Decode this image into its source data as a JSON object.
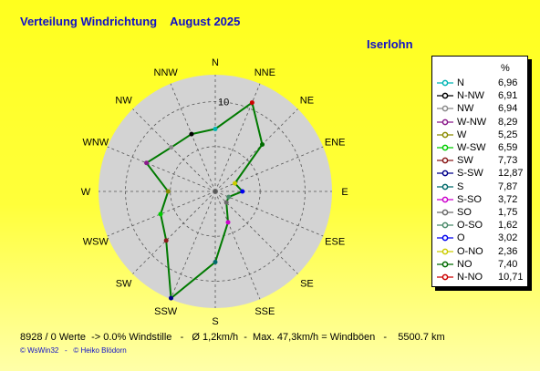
{
  "header": {
    "title": "Verteilung Windrichtung    August 2025",
    "location": "Iserlohn"
  },
  "colors": {
    "background": "#ffff22",
    "rose_fill": "#d3d3d3",
    "series_line": "#007a00",
    "title_text": "#1010c8"
  },
  "chart_data": {
    "type": "radar",
    "unit": "%",
    "radial_tick": "10",
    "grid": true,
    "directions": [
      "N",
      "NNE",
      "NE",
      "ENE",
      "E",
      "ESE",
      "SE",
      "SSE",
      "S",
      "SSW",
      "SW",
      "WSW",
      "W",
      "WNW",
      "NW",
      "NNW"
    ],
    "series_values": [
      {
        "direction": "N",
        "value": 6.96
      },
      {
        "direction": "NNE",
        "value": 10.71
      },
      {
        "direction": "NE",
        "value": 7.4
      },
      {
        "direction": "ENE",
        "value": 2.36
      },
      {
        "direction": "E",
        "value": 3.02
      },
      {
        "direction": "ESE",
        "value": 1.62
      },
      {
        "direction": "SE",
        "value": 1.75
      },
      {
        "direction": "SSE",
        "value": 3.72
      },
      {
        "direction": "S",
        "value": 7.87
      },
      {
        "direction": "SSW",
        "value": 12.87
      },
      {
        "direction": "SW",
        "value": 7.73
      },
      {
        "direction": "WSW",
        "value": 6.59
      },
      {
        "direction": "W",
        "value": 5.25
      },
      {
        "direction": "WNW",
        "value": 8.29
      },
      {
        "direction": "NW",
        "value": 6.94
      },
      {
        "direction": "NNW",
        "value": 6.91
      }
    ],
    "legend": {
      "header": "%",
      "placement": "right",
      "entries": [
        {
          "label": "N",
          "value": "6,96",
          "color": "#00b4b4"
        },
        {
          "label": "N-NW",
          "value": "6,91",
          "color": "#000000"
        },
        {
          "label": "NW",
          "value": "6,94",
          "color": "#8a8a8a"
        },
        {
          "label": "W-NW",
          "value": "8,29",
          "color": "#8a1a8a"
        },
        {
          "label": "W",
          "value": "5,25",
          "color": "#8a8a00"
        },
        {
          "label": "W-SW",
          "value": "6,59",
          "color": "#00cc00"
        },
        {
          "label": "SW",
          "value": "7,73",
          "color": "#8a1a1a"
        },
        {
          "label": "S-SW",
          "value": "12,87",
          "color": "#00008a"
        },
        {
          "label": "S",
          "value": "7,87",
          "color": "#006a6a"
        },
        {
          "label": "S-SO",
          "value": "3,72",
          "color": "#cc00cc"
        },
        {
          "label": "SO",
          "value": "1,75",
          "color": "#6a6a6a"
        },
        {
          "label": "O-SO",
          "value": "1,62",
          "color": "#4a8a6a"
        },
        {
          "label": "O",
          "value": "3,02",
          "color": "#0000ee"
        },
        {
          "label": "O-NO",
          "value": "2,36",
          "color": "#cccc00"
        },
        {
          "label": "NO",
          "value": "7,40",
          "color": "#006a00"
        },
        {
          "label": "N-NO",
          "value": "10,71",
          "color": "#cc0000"
        }
      ]
    }
  },
  "footer": {
    "stats": "8928 / 0 Werte  -> 0.0% Windstille   -   Ø 1,2km/h  -  Max. 47,3km/h = Windböen   -    5500.7 km",
    "credits": "© WsWin32   -   © Heiko Blödorn"
  }
}
